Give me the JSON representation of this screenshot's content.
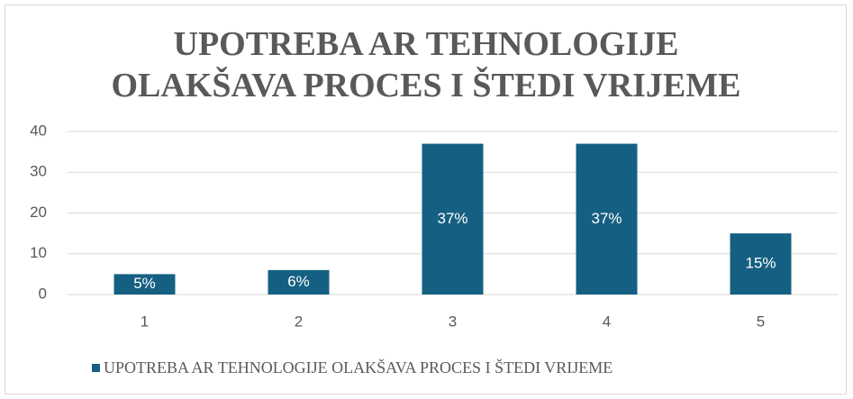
{
  "chart_data": {
    "type": "bar",
    "title": "UPOTREBA AR TEHNOLOGIJE OLAKŠAVA PROCES I ŠTEDI VRIJEME",
    "categories": [
      "1",
      "2",
      "3",
      "4",
      "5"
    ],
    "series": [
      {
        "name": "UPOTREBA AR TEHNOLOGIJE OLAKŠAVA PROCES I ŠTEDI VRIJEME",
        "color": "#156082",
        "values": [
          5,
          6,
          37,
          37,
          15
        ],
        "value_labels": [
          "5%",
          "6%",
          "37%",
          "37%",
          "15%"
        ]
      }
    ],
    "ylim": [
      0,
      40
    ],
    "yticks": [
      0,
      10,
      20,
      30,
      40
    ],
    "grid": true,
    "legend": "bottom"
  }
}
